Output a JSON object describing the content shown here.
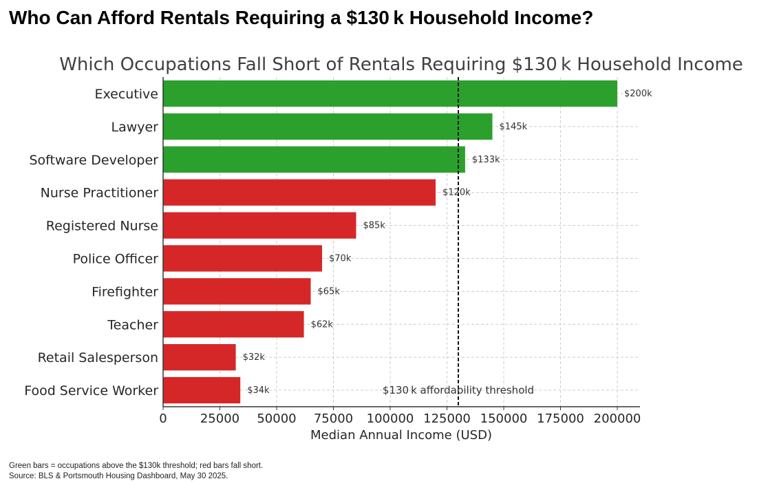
{
  "headline": "Who Can Afford Rentals Requiring a $130 k Household Income?",
  "chart_data": {
    "type": "bar",
    "orientation": "horizontal",
    "title": "Which Occupations Fall Short of Rentals Requiring $130 k Household Income",
    "xlabel": "Median Annual Income (USD)",
    "ylabel": "",
    "xlim": [
      0,
      210000
    ],
    "xticks": [
      0,
      25000,
      50000,
      75000,
      100000,
      125000,
      150000,
      175000,
      200000
    ],
    "grid": true,
    "categories": [
      "Executive",
      "Lawyer",
      "Software Developer",
      "Nurse Practitioner",
      "Registered Nurse",
      "Police Officer",
      "Firefighter",
      "Teacher",
      "Retail Salesperson",
      "Food Service Worker"
    ],
    "values": [
      200000,
      145000,
      133000,
      120000,
      85000,
      70000,
      65000,
      62000,
      32000,
      34000
    ],
    "data_labels": [
      "$200k",
      "$145k",
      "$133k",
      "$120k",
      "$85k",
      "$70k",
      "$65k",
      "$62k",
      "$32k",
      "$34k"
    ],
    "threshold": {
      "value": 130000,
      "label": "$130 k affordability threshold"
    },
    "colors": {
      "above": "#2ca02c",
      "below": "#d62728",
      "grid": "#cccccc",
      "axis": "#333333",
      "text": "#262626"
    }
  },
  "footer": {
    "note": "Green bars = occupations above the $130k threshold; red bars fall short.",
    "source": "Source: BLS & Portsmouth Housing Dashboard, May 30 2025."
  }
}
